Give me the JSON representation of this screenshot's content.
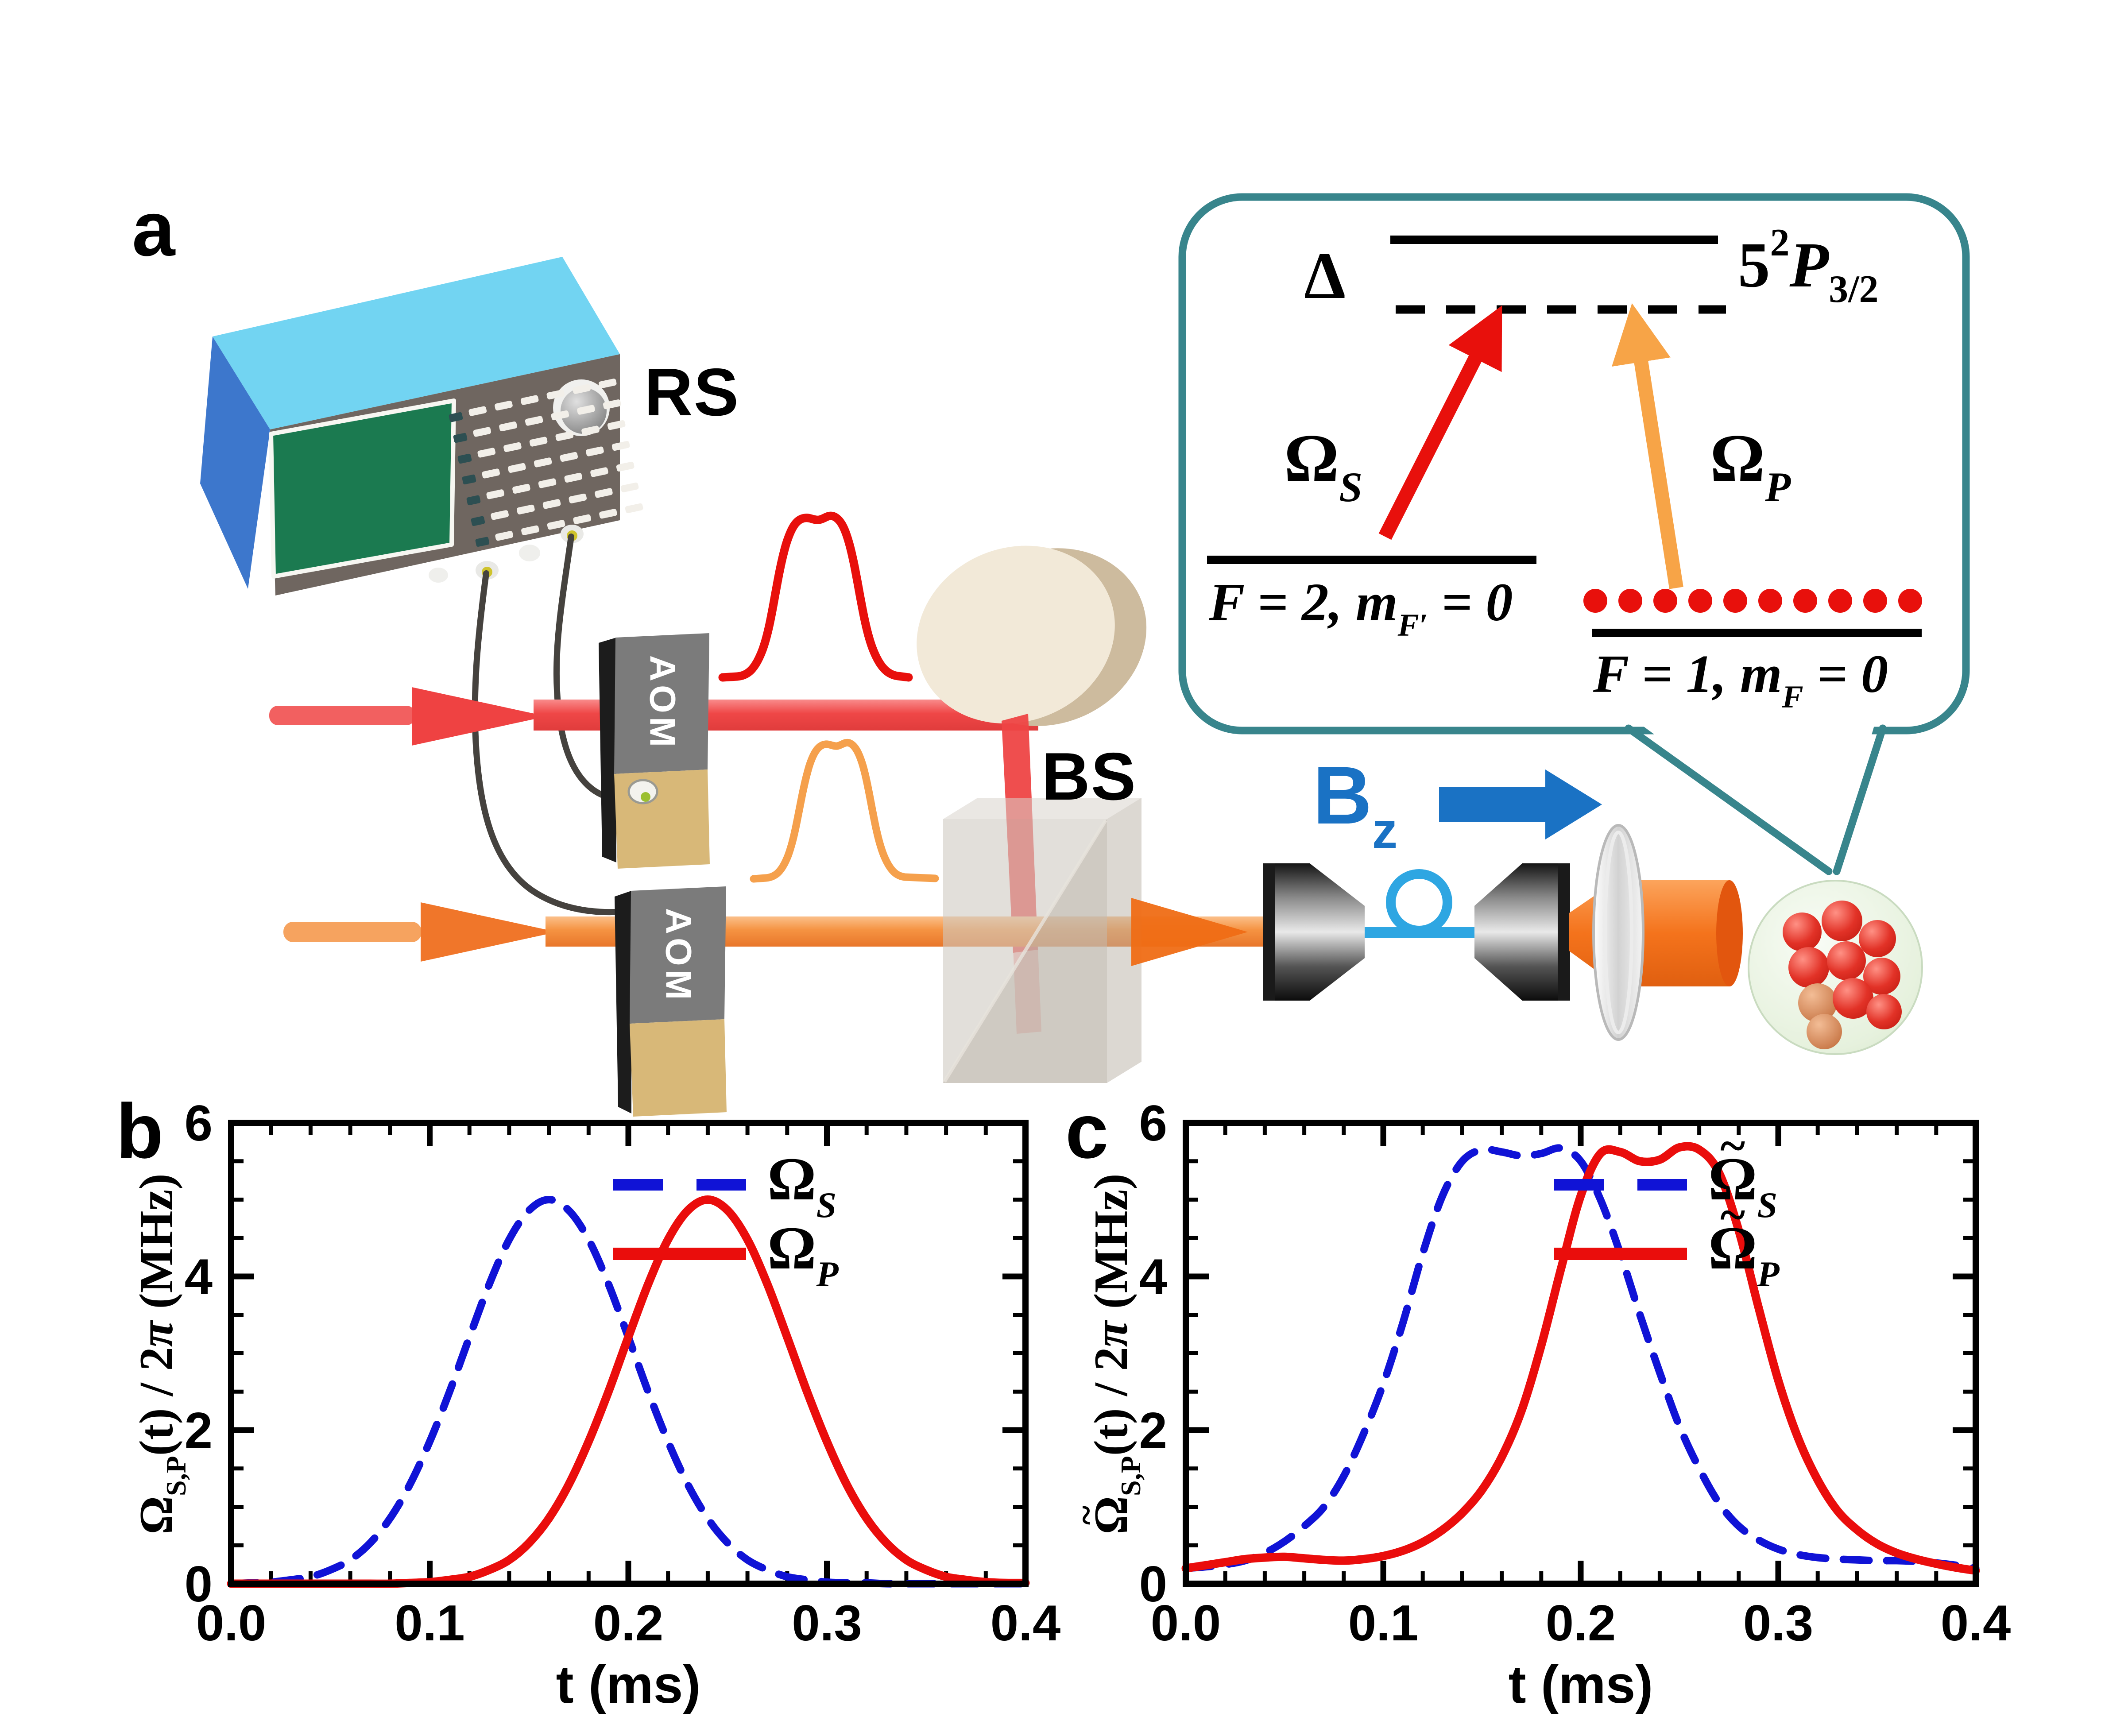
{
  "panel_labels": {
    "a": "a",
    "b": "b",
    "c": "c"
  },
  "apparatus": {
    "rs": "RS",
    "aom": "AOM",
    "bs": "BS",
    "bz_base": "B",
    "bz_sub": "z"
  },
  "inset": {
    "delta": "Δ",
    "excited_state": {
      "base": "5",
      "sup": "2",
      "letter": "P",
      "sub": "3/2"
    },
    "omega_s": {
      "symbol": "Ω",
      "sub": "S"
    },
    "omega_p": {
      "symbol": "Ω",
      "sub": "P"
    },
    "level_left": {
      "pre": "F = 2, m",
      "sub": "F′",
      "post": " = 0"
    },
    "level_right": {
      "pre": "F = 1, m",
      "sub": "F",
      "post": " = 0"
    },
    "population_dots_count": 10
  },
  "colors": {
    "teal_bubble": "#38858c",
    "red": "#e8100c",
    "orange": "#f7a447",
    "blue_curve": "#1013d6",
    "red_curve": "#ea0d0c",
    "bz_blue": "#1a72c4",
    "beam_red": "#f15454",
    "beam_orange": "#f59b52",
    "fiber_blue": "#2ea6e2"
  },
  "chart_data": [
    {
      "type": "line",
      "panel": "b",
      "xlabel": "t (ms)",
      "ylabel": {
        "tilde_mark": "",
        "omega": "Ω",
        "sub": "S,P",
        "rest1": "(t) / 2",
        "pi": "π",
        "rest2": " (MHz)"
      },
      "xlim": [
        0,
        0.4
      ],
      "ylim": [
        0,
        6
      ],
      "xtick_labels": [
        "0.0",
        "0.1",
        "0.2",
        "0.3",
        "0.4"
      ],
      "ytick_labels": [
        "0",
        "2",
        "4",
        "6"
      ],
      "x_minor_step": 0.02,
      "y_minor_step": 0.5,
      "x": [
        0,
        0.01,
        0.02,
        0.03,
        0.04,
        0.05,
        0.06,
        0.07,
        0.08,
        0.09,
        0.1,
        0.11,
        0.12,
        0.13,
        0.14,
        0.15,
        0.16,
        0.17,
        0.18,
        0.19,
        0.2,
        0.21,
        0.22,
        0.23,
        0.24,
        0.25,
        0.26,
        0.27,
        0.28,
        0.29,
        0.3,
        0.31,
        0.32,
        0.33,
        0.34,
        0.35,
        0.36,
        0.37,
        0.38,
        0.39,
        0.4
      ],
      "series": [
        {
          "name": "Omega_S",
          "style": "dashed",
          "color": "#1013d6",
          "values": [
            0,
            0.01,
            0.02,
            0.05,
            0.09,
            0.18,
            0.31,
            0.53,
            0.85,
            1.29,
            1.85,
            2.5,
            3.21,
            3.9,
            4.48,
            4.86,
            5,
            4.86,
            4.48,
            3.9,
            3.21,
            2.5,
            1.85,
            1.29,
            0.85,
            0.53,
            0.31,
            0.18,
            0.09,
            0.05,
            0.02,
            0.01,
            0.01,
            0,
            0,
            0,
            0,
            0,
            0,
            0,
            0
          ]
        },
        {
          "name": "Omega_P",
          "style": "solid",
          "color": "#ea0d0c",
          "values": [
            0,
            0,
            0,
            0,
            0,
            0,
            0,
            0,
            0,
            0.01,
            0.02,
            0.05,
            0.09,
            0.18,
            0.31,
            0.53,
            0.85,
            1.29,
            1.85,
            2.5,
            3.21,
            3.9,
            4.48,
            4.86,
            5,
            4.86,
            4.48,
            3.9,
            3.21,
            2.5,
            1.85,
            1.29,
            0.85,
            0.53,
            0.31,
            0.18,
            0.09,
            0.05,
            0.02,
            0.01,
            0.01
          ]
        }
      ],
      "legend": [
        {
          "tilde_mark": "",
          "symbol": "Ω",
          "sub": "S"
        },
        {
          "tilde_mark": "",
          "symbol": "Ω",
          "sub": "P"
        }
      ],
      "legend_position": "top-right",
      "grid": false
    },
    {
      "type": "line",
      "panel": "c",
      "xlabel": "t (ms)",
      "ylabel": {
        "tilde_mark": "~",
        "omega": "Ω",
        "sub": "S,P",
        "rest1": "(t) / 2",
        "pi": "π",
        "rest2": " (MHz)"
      },
      "xlim": [
        0,
        0.4
      ],
      "ylim": [
        0,
        6
      ],
      "xtick_labels": [
        "0.0",
        "0.1",
        "0.2",
        "0.3",
        "0.4"
      ],
      "ytick_labels": [
        "0",
        "2",
        "4",
        "6"
      ],
      "x_minor_step": 0.02,
      "y_minor_step": 0.5,
      "x": [
        0,
        0.01,
        0.02,
        0.03,
        0.04,
        0.05,
        0.06,
        0.07,
        0.08,
        0.09,
        0.1,
        0.11,
        0.12,
        0.13,
        0.14,
        0.15,
        0.16,
        0.17,
        0.18,
        0.19,
        0.2,
        0.21,
        0.22,
        0.23,
        0.24,
        0.25,
        0.26,
        0.27,
        0.28,
        0.29,
        0.3,
        0.31,
        0.32,
        0.33,
        0.34,
        0.35,
        0.36,
        0.37,
        0.38,
        0.39,
        0.4
      ],
      "series": [
        {
          "name": "Omega_tilde_S",
          "style": "dashed",
          "color": "#1013d6",
          "values": [
            0.2,
            0.22,
            0.25,
            0.3,
            0.4,
            0.55,
            0.75,
            1.0,
            1.4,
            1.95,
            2.6,
            3.4,
            4.3,
            5.05,
            5.5,
            5.65,
            5.62,
            5.57,
            5.6,
            5.67,
            5.5,
            5.0,
            4.3,
            3.5,
            2.75,
            2.05,
            1.5,
            1.05,
            0.75,
            0.57,
            0.45,
            0.38,
            0.34,
            0.32,
            0.31,
            0.3,
            0.3,
            0.29,
            0.27,
            0.24,
            0.2
          ]
        },
        {
          "name": "Omega_tilde_P",
          "style": "solid",
          "color": "#ea0d0c",
          "values": [
            0.2,
            0.24,
            0.28,
            0.32,
            0.34,
            0.35,
            0.33,
            0.31,
            0.3,
            0.32,
            0.36,
            0.43,
            0.54,
            0.7,
            0.92,
            1.22,
            1.65,
            2.25,
            3.1,
            4.1,
            5.05,
            5.6,
            5.62,
            5.5,
            5.52,
            5.68,
            5.65,
            5.35,
            4.6,
            3.6,
            2.65,
            1.9,
            1.35,
            0.95,
            0.7,
            0.52,
            0.4,
            0.32,
            0.26,
            0.21,
            0.17
          ]
        }
      ],
      "legend": [
        {
          "tilde_mark": "~",
          "symbol": "Ω",
          "sub": "S"
        },
        {
          "tilde_mark": "~",
          "symbol": "Ω",
          "sub": "P"
        }
      ],
      "legend_position": "top-right",
      "grid": false
    }
  ]
}
